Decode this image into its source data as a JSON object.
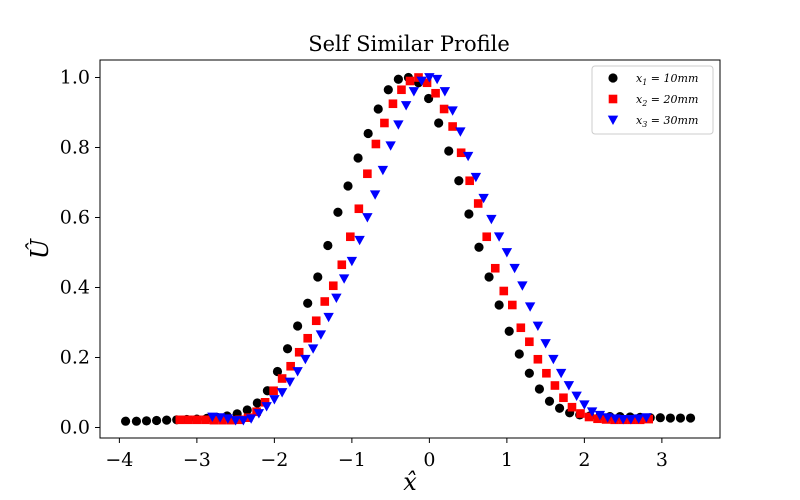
{
  "chart_data": {
    "type": "scatter",
    "title": "Self Similar Profile",
    "xlabel": "x̂",
    "ylabel": "Û",
    "xlim": [
      -4.25,
      3.75
    ],
    "ylim": [
      -0.03,
      1.05
    ],
    "xticks": [
      -4,
      -3,
      -2,
      -1,
      0,
      1,
      2,
      3
    ],
    "xtick_labels": [
      "−4",
      "−3",
      "−2",
      "−1",
      "0",
      "1",
      "2",
      "3"
    ],
    "yticks": [
      0.0,
      0.2,
      0.4,
      0.6,
      0.8,
      1.0
    ],
    "ytick_labels": [
      "0.0",
      "0.2",
      "0.4",
      "0.6",
      "0.8",
      "1.0"
    ],
    "grid": false,
    "legend_position": "top-right",
    "series": [
      {
        "name": "x1 = 10mm",
        "legend_label": {
          "var": "x",
          "sub": "1",
          "rest": " = 10mm"
        },
        "marker": "circle",
        "color": "#000000",
        "x": [
          -3.92,
          -3.78,
          -3.65,
          -3.52,
          -3.39,
          -3.26,
          -3.13,
          -3.0,
          -2.87,
          -2.74,
          -2.61,
          -2.48,
          -2.35,
          -2.22,
          -2.09,
          -1.96,
          -1.83,
          -1.7,
          -1.57,
          -1.44,
          -1.31,
          -1.18,
          -1.05,
          -0.92,
          -0.79,
          -0.66,
          -0.53,
          -0.4,
          -0.27,
          -0.14,
          -0.01,
          0.12,
          0.25,
          0.38,
          0.51,
          0.64,
          0.77,
          0.9,
          1.03,
          1.16,
          1.29,
          1.42,
          1.55,
          1.68,
          1.81,
          1.94,
          2.07,
          2.2,
          2.33,
          2.46,
          2.59,
          2.72,
          2.85,
          2.98,
          3.11,
          3.24,
          3.37
        ],
        "y": [
          0.018,
          0.018,
          0.019,
          0.02,
          0.021,
          0.022,
          0.023,
          0.024,
          0.026,
          0.029,
          0.033,
          0.039,
          0.05,
          0.07,
          0.105,
          0.16,
          0.225,
          0.29,
          0.355,
          0.43,
          0.52,
          0.615,
          0.69,
          0.77,
          0.84,
          0.91,
          0.965,
          0.995,
          1.0,
          0.985,
          0.94,
          0.87,
          0.79,
          0.705,
          0.61,
          0.515,
          0.43,
          0.35,
          0.275,
          0.21,
          0.155,
          0.11,
          0.075,
          0.055,
          0.042,
          0.036,
          0.033,
          0.032,
          0.031,
          0.031,
          0.03,
          0.029,
          0.028,
          0.028,
          0.027,
          0.027,
          0.027
        ]
      },
      {
        "name": "x2 = 20mm",
        "legend_label": {
          "var": "x",
          "sub": "2",
          "rest": " = 20mm"
        },
        "marker": "square",
        "color": "#ff0000",
        "x": [
          -3.22,
          -3.11,
          -3.0,
          -2.89,
          -2.78,
          -2.67,
          -2.56,
          -2.45,
          -2.34,
          -2.23,
          -2.12,
          -2.01,
          -1.9,
          -1.79,
          -1.68,
          -1.57,
          -1.46,
          -1.35,
          -1.24,
          -1.13,
          -1.02,
          -0.91,
          -0.8,
          -0.69,
          -0.58,
          -0.47,
          -0.36,
          -0.25,
          -0.14,
          -0.03,
          0.08,
          0.19,
          0.3,
          0.41,
          0.52,
          0.63,
          0.74,
          0.85,
          0.96,
          1.07,
          1.18,
          1.29,
          1.4,
          1.51,
          1.62,
          1.73,
          1.84,
          1.95,
          2.06,
          2.17,
          2.28,
          2.39,
          2.5,
          2.61,
          2.72,
          2.83
        ],
        "y": [
          0.022,
          0.022,
          0.022,
          0.022,
          0.021,
          0.021,
          0.021,
          0.022,
          0.028,
          0.045,
          0.072,
          0.105,
          0.14,
          0.175,
          0.215,
          0.255,
          0.305,
          0.36,
          0.405,
          0.465,
          0.545,
          0.625,
          0.725,
          0.81,
          0.87,
          0.925,
          0.965,
          0.99,
          1.0,
          0.985,
          0.955,
          0.91,
          0.86,
          0.785,
          0.705,
          0.64,
          0.545,
          0.455,
          0.39,
          0.35,
          0.285,
          0.245,
          0.195,
          0.155,
          0.12,
          0.085,
          0.058,
          0.04,
          0.03,
          0.025,
          0.023,
          0.022,
          0.022,
          0.022,
          0.022,
          0.024
        ]
      },
      {
        "name": "x3 = 30mm",
        "legend_label": {
          "var": "x",
          "sub": "3",
          "rest": " = 30mm"
        },
        "marker": "triangle-down",
        "color": "#0000ff",
        "x": [
          -2.8,
          -2.7,
          -2.6,
          -2.5,
          -2.4,
          -2.3,
          -2.2,
          -2.1,
          -2.0,
          -1.9,
          -1.8,
          -1.7,
          -1.6,
          -1.5,
          -1.4,
          -1.3,
          -1.2,
          -1.1,
          -1.0,
          -0.9,
          -0.8,
          -0.7,
          -0.6,
          -0.5,
          -0.4,
          -0.3,
          -0.2,
          -0.1,
          0.0,
          0.1,
          0.2,
          0.3,
          0.4,
          0.5,
          0.6,
          0.7,
          0.8,
          0.9,
          1.0,
          1.1,
          1.2,
          1.3,
          1.4,
          1.5,
          1.6,
          1.7,
          1.8,
          1.9,
          2.0,
          2.1,
          2.2,
          2.3,
          2.4,
          2.5,
          2.6,
          2.7,
          2.8
        ],
        "y": [
          0.03,
          0.028,
          0.025,
          0.02,
          0.02,
          0.025,
          0.04,
          0.06,
          0.08,
          0.1,
          0.13,
          0.16,
          0.195,
          0.225,
          0.265,
          0.315,
          0.37,
          0.425,
          0.475,
          0.535,
          0.6,
          0.665,
          0.735,
          0.805,
          0.865,
          0.92,
          0.96,
          0.99,
          1.0,
          0.995,
          0.96,
          0.905,
          0.845,
          0.775,
          0.715,
          0.655,
          0.595,
          0.545,
          0.5,
          0.455,
          0.405,
          0.345,
          0.29,
          0.24,
          0.195,
          0.155,
          0.12,
          0.09,
          0.065,
          0.045,
          0.035,
          0.028,
          0.025,
          0.023,
          0.023,
          0.025,
          0.028
        ]
      }
    ]
  }
}
